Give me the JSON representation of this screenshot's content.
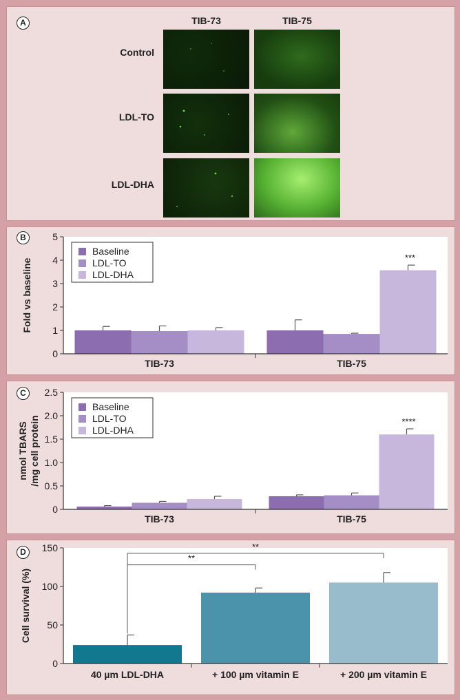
{
  "panel_a": {
    "label": "A",
    "columns": [
      "TIB-73",
      "TIB-75"
    ],
    "rows": [
      "Control",
      "LDL-TO",
      "LDL-DHA"
    ]
  },
  "chart_data": [
    {
      "panel": "B",
      "type": "bar",
      "categories": [
        "TIB-73",
        "TIB-75"
      ],
      "series": [
        {
          "name": "Baseline",
          "color": "#8b6db0",
          "values": [
            1.0,
            1.0
          ],
          "errors": [
            0.17,
            0.45
          ]
        },
        {
          "name": "LDL-TO",
          "color": "#a58dc6",
          "values": [
            0.97,
            0.85
          ],
          "errors": [
            0.22,
            0.03
          ]
        },
        {
          "name": "LDL-DHA",
          "color": "#c7b7dc",
          "values": [
            1.0,
            3.57
          ],
          "errors": [
            0.12,
            0.22
          ]
        }
      ],
      "annotations": [
        {
          "category": 1,
          "series": 2,
          "text": "***"
        }
      ],
      "ylabel": "Fold vs baseline",
      "ylabel_lines": [
        "Fold vs baseline"
      ],
      "ylim": [
        0,
        5
      ],
      "yticks": [
        "0",
        "1",
        "2",
        "3",
        "4",
        "5"
      ],
      "legend": "top-left",
      "grid": false
    },
    {
      "panel": "C",
      "type": "bar",
      "categories": [
        "TIB-73",
        "TIB-75"
      ],
      "series": [
        {
          "name": "Baseline",
          "color": "#8b6db0",
          "values": [
            0.06,
            0.28
          ],
          "errors": [
            0.02,
            0.03
          ]
        },
        {
          "name": "LDL-TO",
          "color": "#a58dc6",
          "values": [
            0.14,
            0.3
          ],
          "errors": [
            0.03,
            0.05
          ]
        },
        {
          "name": "LDL-DHA",
          "color": "#c7b7dc",
          "values": [
            0.22,
            1.6
          ],
          "errors": [
            0.06,
            0.12
          ]
        }
      ],
      "annotations": [
        {
          "category": 1,
          "series": 2,
          "text": "****"
        }
      ],
      "ylabel": "nmol TBARS /mg cell protein",
      "ylabel_lines": [
        "nmol TBARS",
        "/mg cell protein"
      ],
      "ylim": [
        0,
        2.5
      ],
      "yticks": [
        "0",
        "0.5",
        "1.0",
        "1.5",
        "2.0",
        "2.5"
      ],
      "legend": "top-left",
      "grid": false
    },
    {
      "panel": "D",
      "type": "bar",
      "categories": [
        "40 µm LDL-DHA",
        "+ 100 µm vitamin E",
        "+ 200 µm vitamin E"
      ],
      "series": [
        {
          "values": [
            24,
            92,
            105
          ],
          "errors": [
            13,
            6,
            13
          ],
          "colors": [
            "#127890",
            "#4b92ab",
            "#98bccb"
          ]
        }
      ],
      "comparisons": [
        {
          "from": 0,
          "to": 1,
          "text": "**"
        },
        {
          "from": 0,
          "to": 2,
          "text": "**"
        }
      ],
      "ylabel": "Cell survival (%)",
      "ylabel_lines": [
        "Cell survival (%)"
      ],
      "ylim": [
        0,
        150
      ],
      "yticks": [
        "0",
        "50",
        "100",
        "150"
      ],
      "grid": false
    }
  ],
  "panel_labels": {
    "b": "B",
    "c": "C",
    "d": "D"
  }
}
